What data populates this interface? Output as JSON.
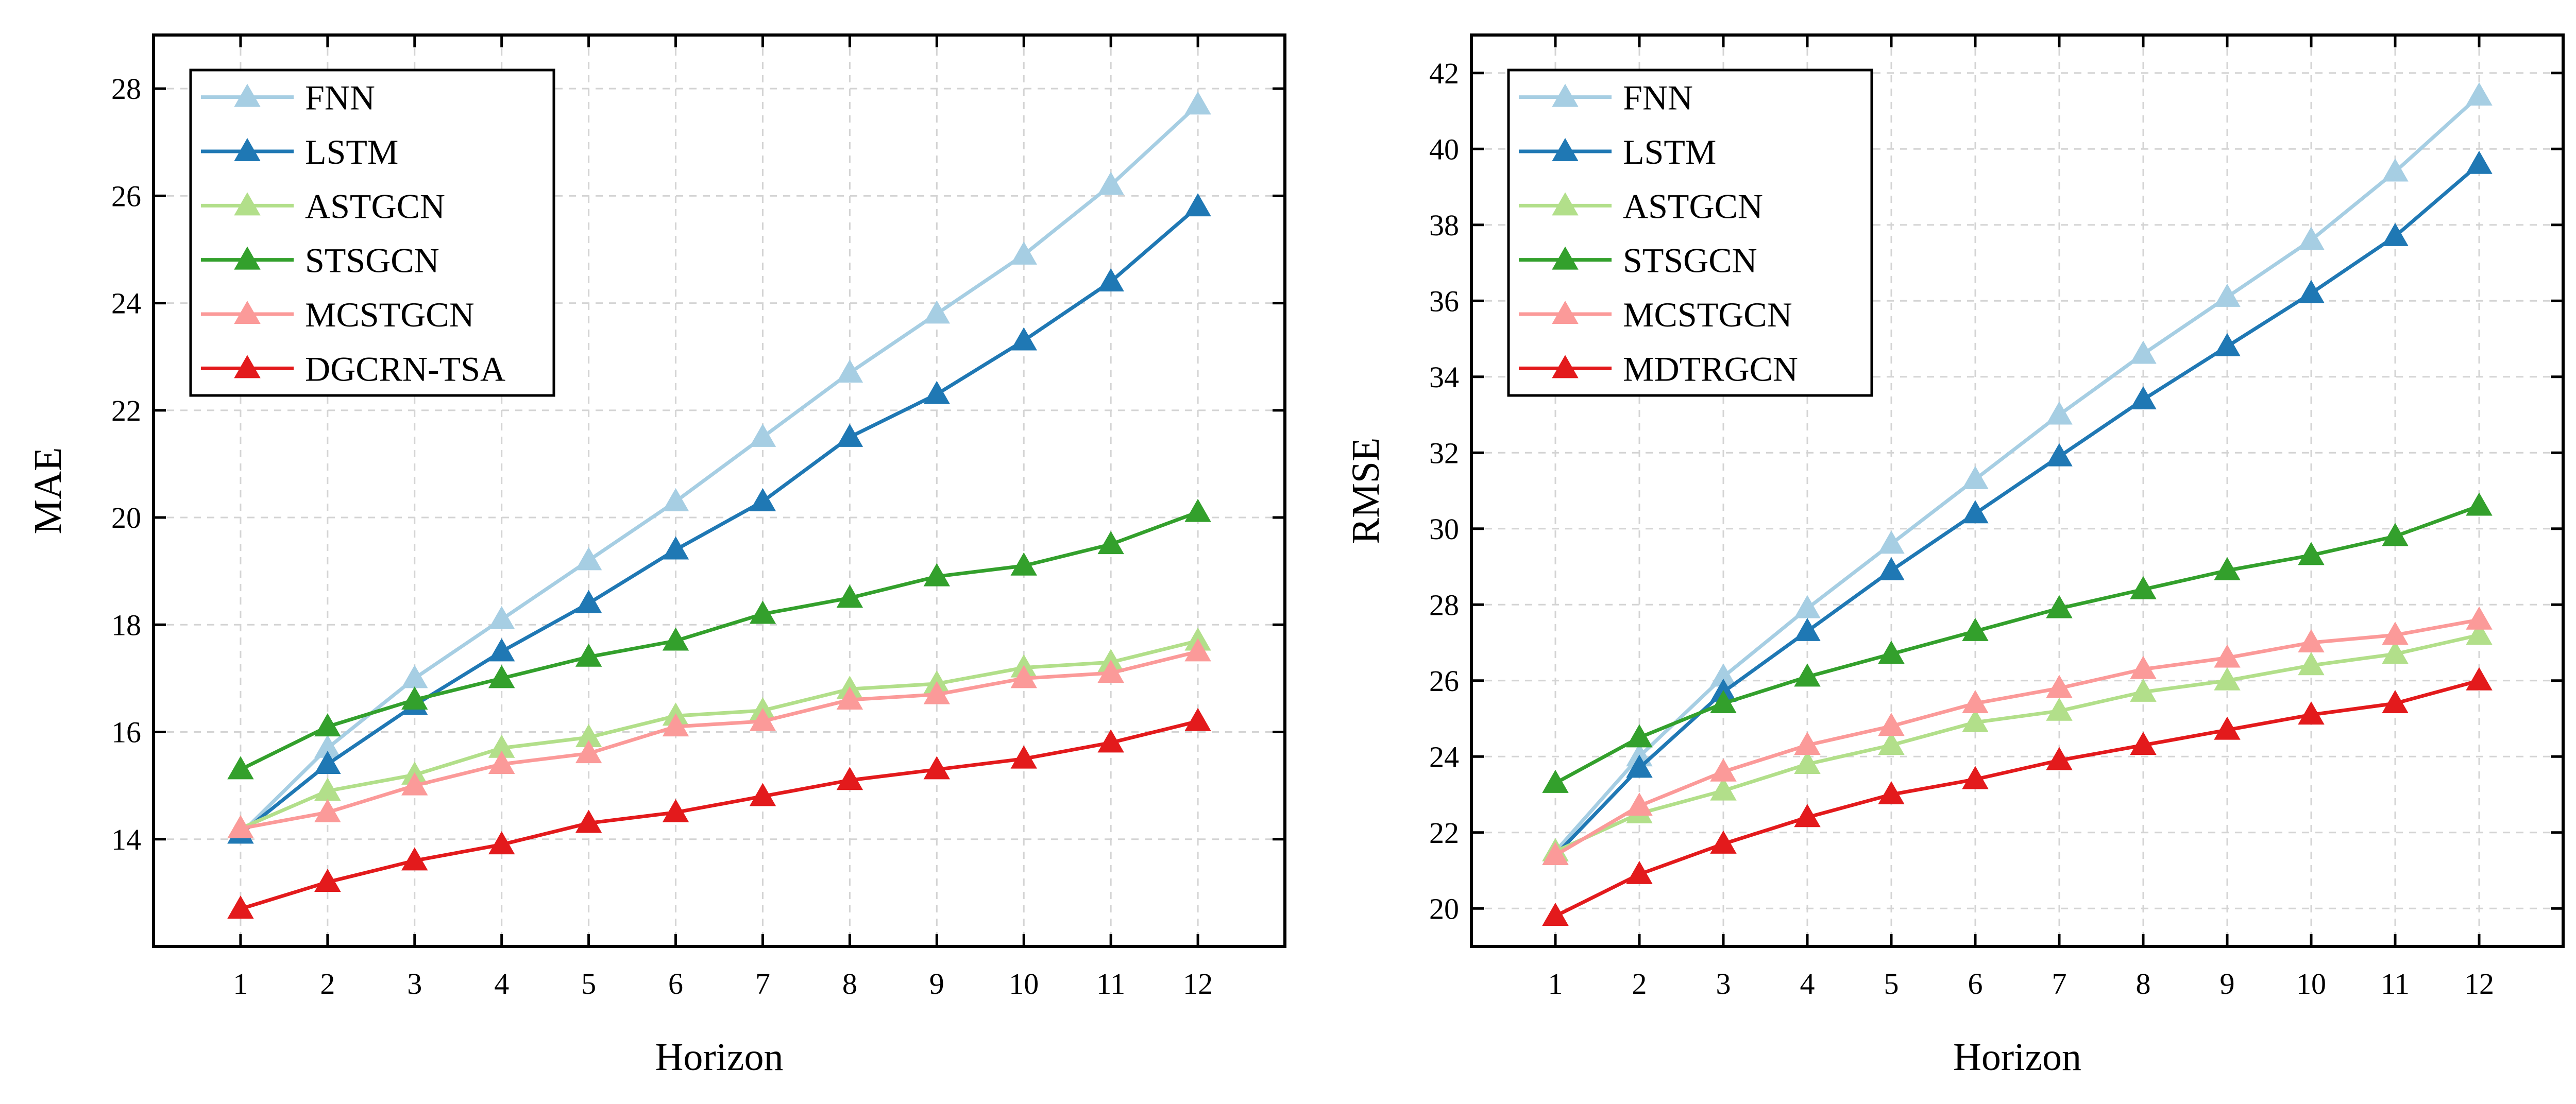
{
  "chart_data": [
    {
      "type": "line",
      "ylabel": "MAE",
      "xlabel": "Horizon",
      "x": [
        1,
        2,
        3,
        4,
        5,
        6,
        7,
        8,
        9,
        10,
        11,
        12
      ],
      "xlim": [
        0,
        13
      ],
      "ylim": [
        12.0,
        29.0
      ],
      "yticks": [
        14,
        16,
        18,
        20,
        22,
        24,
        26,
        28
      ],
      "grid": true,
      "legend_position": "top-left",
      "series": [
        {
          "name": "FNN",
          "color": "#a6cee3",
          "values": [
            14.1,
            15.7,
            17.0,
            18.1,
            19.2,
            20.3,
            21.5,
            22.7,
            23.8,
            24.9,
            26.2,
            27.7
          ]
        },
        {
          "name": "LSTM",
          "color": "#1f78b4",
          "values": [
            14.1,
            15.4,
            16.5,
            17.5,
            18.4,
            19.4,
            20.3,
            21.5,
            22.3,
            23.3,
            24.4,
            25.8
          ]
        },
        {
          "name": "ASTGCN",
          "color": "#b2df8a",
          "values": [
            14.2,
            14.9,
            15.2,
            15.7,
            15.9,
            16.3,
            16.4,
            16.8,
            16.9,
            17.2,
            17.3,
            17.7
          ]
        },
        {
          "name": "STSGCN",
          "color": "#33a02c",
          "values": [
            15.3,
            16.1,
            16.6,
            17.0,
            17.4,
            17.7,
            18.2,
            18.5,
            18.9,
            19.1,
            19.5,
            20.1
          ]
        },
        {
          "name": "MCSTGCN",
          "color": "#fb9a99",
          "values": [
            14.2,
            14.5,
            15.0,
            15.4,
            15.6,
            16.1,
            16.2,
            16.6,
            16.7,
            17.0,
            17.1,
            17.5
          ]
        },
        {
          "name": "DGCRN-TSA",
          "color": "#e31a1c",
          "values": [
            12.7,
            13.2,
            13.6,
            13.9,
            14.3,
            14.5,
            14.8,
            15.1,
            15.3,
            15.5,
            15.8,
            16.2
          ]
        }
      ]
    },
    {
      "type": "line",
      "ylabel": "RMSE",
      "xlabel": "Horizon",
      "x": [
        1,
        2,
        3,
        4,
        5,
        6,
        7,
        8,
        9,
        10,
        11,
        12
      ],
      "xlim": [
        0,
        13
      ],
      "ylim": [
        19.0,
        43.0
      ],
      "yticks": [
        20,
        22,
        24,
        26,
        28,
        30,
        32,
        34,
        36,
        38,
        40,
        42
      ],
      "grid": true,
      "legend_position": "top-left",
      "series": [
        {
          "name": "FNN",
          "color": "#a6cee3",
          "values": [
            21.5,
            24.0,
            26.1,
            27.9,
            29.6,
            31.3,
            33.0,
            34.6,
            36.1,
            37.6,
            39.4,
            41.4
          ]
        },
        {
          "name": "LSTM",
          "color": "#1f78b4",
          "values": [
            21.4,
            23.7,
            25.7,
            27.3,
            28.9,
            30.4,
            31.9,
            33.4,
            34.8,
            36.2,
            37.7,
            39.6
          ]
        },
        {
          "name": "ASTGCN",
          "color": "#b2df8a",
          "values": [
            21.5,
            22.5,
            23.1,
            23.8,
            24.3,
            24.9,
            25.2,
            25.7,
            26.0,
            26.4,
            26.7,
            27.2
          ]
        },
        {
          "name": "STSGCN",
          "color": "#33a02c",
          "values": [
            23.3,
            24.5,
            25.4,
            26.1,
            26.7,
            27.3,
            27.9,
            28.4,
            28.9,
            29.3,
            29.8,
            30.6
          ]
        },
        {
          "name": "MCSTGCN",
          "color": "#fb9a99",
          "values": [
            21.4,
            22.7,
            23.6,
            24.3,
            24.8,
            25.4,
            25.8,
            26.3,
            26.6,
            27.0,
            27.2,
            27.6
          ]
        },
        {
          "name": "MDTRGCN",
          "color": "#e31a1c",
          "values": [
            19.8,
            20.9,
            21.7,
            22.4,
            23.0,
            23.4,
            23.9,
            24.3,
            24.7,
            25.1,
            25.4,
            26.0
          ]
        }
      ]
    }
  ]
}
